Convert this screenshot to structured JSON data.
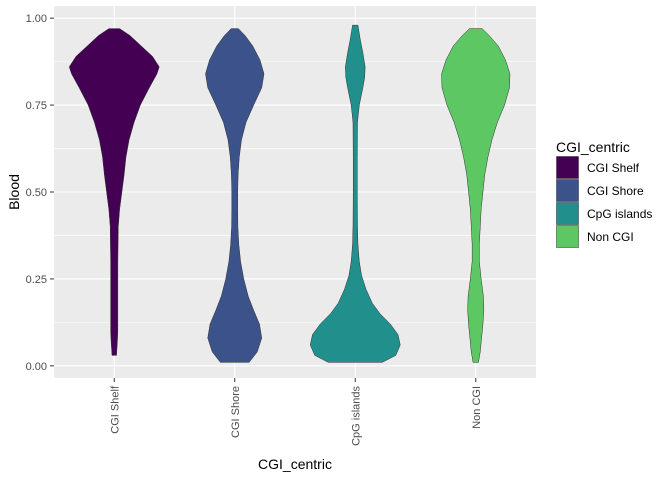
{
  "chart_data": {
    "type": "violin",
    "xlabel": "CGI_centric",
    "ylabel": "Blood",
    "ylim": [
      -0.035,
      1.035
    ],
    "yticks": [
      "0.00",
      "0.25",
      "0.50",
      "0.75",
      "1.00"
    ],
    "ytick_values": [
      0,
      0.25,
      0.5,
      0.75,
      1
    ],
    "categories": [
      "CGI Shelf",
      "CGI Shore",
      "CpG islands",
      "Non CGI"
    ],
    "grid": true,
    "legend": {
      "title": "CGI_centric",
      "position": "right",
      "entries": [
        "CGI Shelf",
        "CGI Shore",
        "CpG islands",
        "Non CGI"
      ]
    },
    "colors": [
      "#440154",
      "#3b528b",
      "#21908c",
      "#5dc863"
    ],
    "series": [
      {
        "category": "CGI Shelf",
        "ymin": 0.03,
        "ymax": 0.97,
        "density": [
          [
            0.03,
            0.05
          ],
          [
            0.07,
            0.07
          ],
          [
            0.1,
            0.08
          ],
          [
            0.2,
            0.08
          ],
          [
            0.3,
            0.08
          ],
          [
            0.4,
            0.09
          ],
          [
            0.45,
            0.12
          ],
          [
            0.47,
            0.14
          ],
          [
            0.5,
            0.17
          ],
          [
            0.55,
            0.22
          ],
          [
            0.6,
            0.26
          ],
          [
            0.65,
            0.33
          ],
          [
            0.7,
            0.44
          ],
          [
            0.75,
            0.58
          ],
          [
            0.8,
            0.78
          ],
          [
            0.84,
            0.95
          ],
          [
            0.86,
            1.0
          ],
          [
            0.89,
            0.85
          ],
          [
            0.92,
            0.6
          ],
          [
            0.95,
            0.35
          ],
          [
            0.97,
            0.12
          ]
        ]
      },
      {
        "category": "CGI Shore",
        "ymin": 0.01,
        "ymax": 0.97,
        "density": [
          [
            0.01,
            0.32
          ],
          [
            0.04,
            0.5
          ],
          [
            0.08,
            0.6
          ],
          [
            0.12,
            0.55
          ],
          [
            0.16,
            0.42
          ],
          [
            0.2,
            0.3
          ],
          [
            0.25,
            0.2
          ],
          [
            0.3,
            0.13
          ],
          [
            0.35,
            0.09
          ],
          [
            0.4,
            0.07
          ],
          [
            0.45,
            0.065
          ],
          [
            0.5,
            0.065
          ],
          [
            0.55,
            0.075
          ],
          [
            0.6,
            0.1
          ],
          [
            0.65,
            0.15
          ],
          [
            0.7,
            0.25
          ],
          [
            0.75,
            0.42
          ],
          [
            0.8,
            0.6
          ],
          [
            0.84,
            0.65
          ],
          [
            0.88,
            0.56
          ],
          [
            0.92,
            0.4
          ],
          [
            0.95,
            0.23
          ],
          [
            0.97,
            0.08
          ]
        ]
      },
      {
        "category": "CpG islands",
        "ymin": 0.01,
        "ymax": 0.98,
        "density": [
          [
            0.01,
            0.6
          ],
          [
            0.03,
            0.9
          ],
          [
            0.06,
            1.0
          ],
          [
            0.09,
            0.95
          ],
          [
            0.12,
            0.78
          ],
          [
            0.15,
            0.55
          ],
          [
            0.18,
            0.38
          ],
          [
            0.22,
            0.24
          ],
          [
            0.26,
            0.14
          ],
          [
            0.3,
            0.09
          ],
          [
            0.35,
            0.06
          ],
          [
            0.4,
            0.05
          ],
          [
            0.5,
            0.045
          ],
          [
            0.6,
            0.045
          ],
          [
            0.7,
            0.05
          ],
          [
            0.75,
            0.09
          ],
          [
            0.8,
            0.17
          ],
          [
            0.83,
            0.21
          ],
          [
            0.86,
            0.22
          ],
          [
            0.9,
            0.17
          ],
          [
            0.94,
            0.11
          ],
          [
            0.98,
            0.06
          ]
        ]
      },
      {
        "category": "Non CGI",
        "ymin": 0.01,
        "ymax": 0.97,
        "density": [
          [
            0.01,
            0.06
          ],
          [
            0.04,
            0.1
          ],
          [
            0.08,
            0.13
          ],
          [
            0.12,
            0.16
          ],
          [
            0.16,
            0.18
          ],
          [
            0.2,
            0.17
          ],
          [
            0.25,
            0.12
          ],
          [
            0.3,
            0.08
          ],
          [
            0.35,
            0.08
          ],
          [
            0.4,
            0.1
          ],
          [
            0.45,
            0.12
          ],
          [
            0.5,
            0.16
          ],
          [
            0.55,
            0.2
          ],
          [
            0.6,
            0.27
          ],
          [
            0.65,
            0.36
          ],
          [
            0.7,
            0.48
          ],
          [
            0.75,
            0.64
          ],
          [
            0.8,
            0.75
          ],
          [
            0.84,
            0.76
          ],
          [
            0.88,
            0.66
          ],
          [
            0.92,
            0.5
          ],
          [
            0.95,
            0.3
          ],
          [
            0.97,
            0.14
          ]
        ]
      }
    ]
  }
}
